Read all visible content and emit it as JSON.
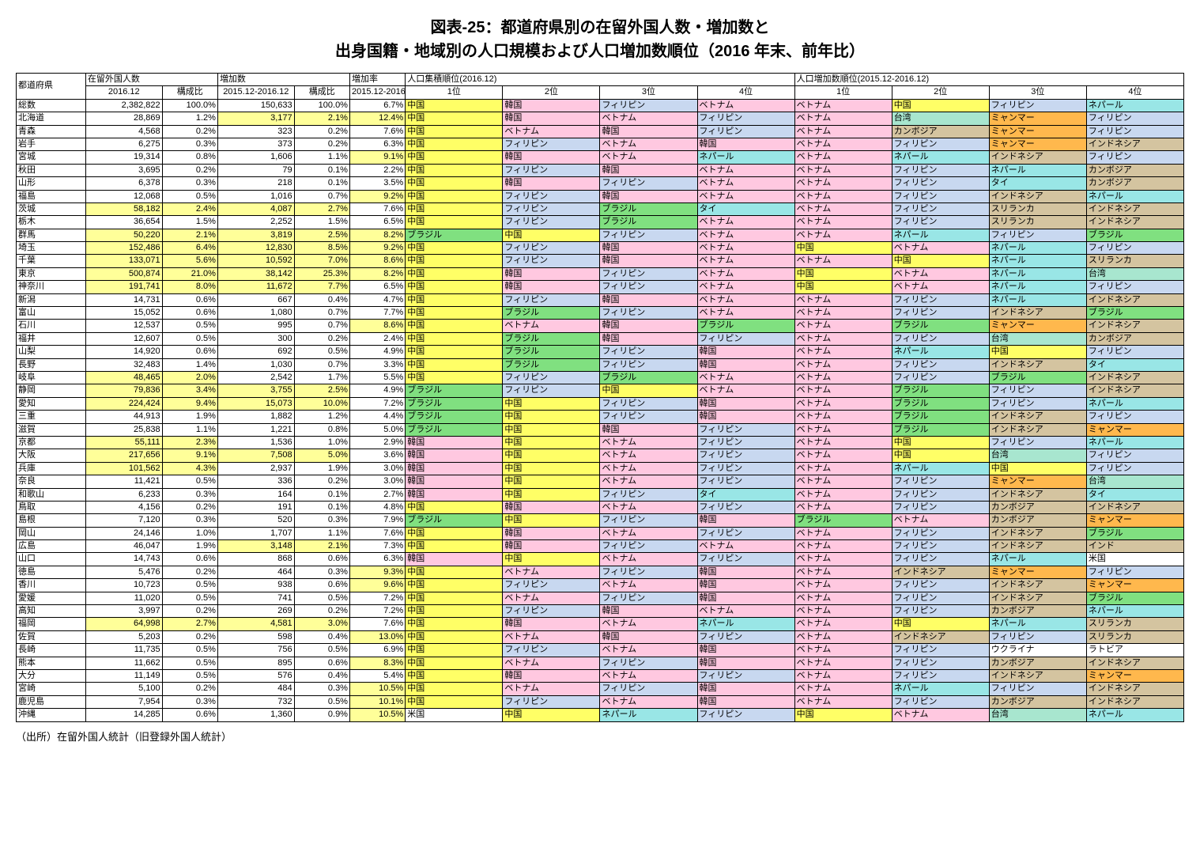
{
  "title_line1": "図表-25：都道府県別の在留外国人数・増加数と",
  "title_line2": "出身国籍・地域別の人口規模および人口増加数順位（2016 年末、前年比）",
  "source": "（出所）在留外国人統計（旧登録外国人統計）",
  "headers": {
    "pref": "都道府県",
    "residents": "在留外国人数",
    "increase": "増加数",
    "increase_rate": "増加率",
    "pop_rank": "人口集積順位(2016.12)",
    "growth_rank": "人口増加数順位(2015.12-2016.12)",
    "date": "2016.12",
    "ratio": "構成比",
    "period": "2015.12-2016.12",
    "r1": "1位",
    "r2": "2位",
    "r3": "3位",
    "r4": "4位"
  },
  "colors": {
    "中国": "#ffff66",
    "韓国": "#ffc8e0",
    "フィリピン": "#c8d8f0",
    "ベトナム": "#ffc8e0",
    "ネパール": "#99e6e6",
    "台湾": "#a8e6cf",
    "ミャンマー": "#ffb84d",
    "インドネシア": "#d4c4a0",
    "ブラジル": "#80e080",
    "タイ": "#99e6e6",
    "カンボジア": "#d4c4a0",
    "スリランカ": "#d4c4a0",
    "インド": "#d4c4a0",
    "米国": "#ffffff",
    "ウクライナ": "#ffffff",
    "ラトビア": "#ffffff",
    "hl_yellow": "#ffff99",
    "none": "#ffffff"
  },
  "rows": [
    {
      "pref": "総数",
      "total": "2,382,822",
      "total_pct": "100.0%",
      "inc": "150,633",
      "inc_pct": "100.0%",
      "rate": "6.7%",
      "hl": [],
      "p": [
        "中国",
        "韓国",
        "フィリピン",
        "ベトナム"
      ],
      "g": [
        "ベトナム",
        "中国",
        "フィリピン",
        "ネパール"
      ]
    },
    {
      "pref": "北海道",
      "total": "28,869",
      "total_pct": "1.2%",
      "inc": "3,177",
      "inc_pct": "2.1%",
      "rate": "12.4%",
      "hl": [
        "inc",
        "inc_pct",
        "rate"
      ],
      "p": [
        "中国",
        "韓国",
        "ベトナム",
        "フィリピン"
      ],
      "g": [
        "ベトナム",
        "台湾",
        "ミャンマー",
        "フィリピン"
      ]
    },
    {
      "pref": "青森",
      "total": "4,568",
      "total_pct": "0.2%",
      "inc": "323",
      "inc_pct": "0.2%",
      "rate": "7.6%",
      "hl": [],
      "p": [
        "中国",
        "ベトナム",
        "韓国",
        "フィリピン"
      ],
      "g": [
        "ベトナム",
        "カンボジア",
        "ミャンマー",
        "フィリピン"
      ]
    },
    {
      "pref": "岩手",
      "total": "6,275",
      "total_pct": "0.3%",
      "inc": "373",
      "inc_pct": "0.2%",
      "rate": "6.3%",
      "hl": [],
      "p": [
        "中国",
        "フィリピン",
        "ベトナム",
        "韓国"
      ],
      "g": [
        "ベトナム",
        "フィリピン",
        "ミャンマー",
        "インドネシア"
      ]
    },
    {
      "pref": "宮城",
      "total": "19,314",
      "total_pct": "0.8%",
      "inc": "1,606",
      "inc_pct": "1.1%",
      "rate": "9.1%",
      "hl": [
        "rate"
      ],
      "p": [
        "中国",
        "韓国",
        "ベトナム",
        "ネパール"
      ],
      "g": [
        "ベトナム",
        "ネパール",
        "インドネシア",
        "フィリピン"
      ]
    },
    {
      "pref": "秋田",
      "total": "3,695",
      "total_pct": "0.2%",
      "inc": "79",
      "inc_pct": "0.1%",
      "rate": "2.2%",
      "hl": [],
      "p": [
        "中国",
        "フィリピン",
        "韓国",
        "ベトナム"
      ],
      "g": [
        "ベトナム",
        "フィリピン",
        "ネパール",
        "カンボジア"
      ]
    },
    {
      "pref": "山形",
      "total": "6,378",
      "total_pct": "0.3%",
      "inc": "218",
      "inc_pct": "0.1%",
      "rate": "3.5%",
      "hl": [],
      "p": [
        "中国",
        "韓国",
        "フィリピン",
        "ベトナム"
      ],
      "g": [
        "ベトナム",
        "フィリピン",
        "タイ",
        "カンボジア"
      ]
    },
    {
      "pref": "福島",
      "total": "12,068",
      "total_pct": "0.5%",
      "inc": "1,016",
      "inc_pct": "0.7%",
      "rate": "9.2%",
      "hl": [
        "rate"
      ],
      "p": [
        "中国",
        "フィリピン",
        "韓国",
        "ベトナム"
      ],
      "g": [
        "ベトナム",
        "フィリピン",
        "インドネシア",
        "ネパール"
      ]
    },
    {
      "pref": "茨城",
      "total": "58,182",
      "total_pct": "2.4%",
      "inc": "4,087",
      "inc_pct": "2.7%",
      "rate": "7.6%",
      "hl": [
        "total",
        "total_pct",
        "inc",
        "inc_pct"
      ],
      "p": [
        "中国",
        "フィリピン",
        "ブラジル",
        "タイ"
      ],
      "g": [
        "ベトナム",
        "フィリピン",
        "スリランカ",
        "インドネシア"
      ]
    },
    {
      "pref": "栃木",
      "total": "36,654",
      "total_pct": "1.5%",
      "inc": "2,252",
      "inc_pct": "1.5%",
      "rate": "6.5%",
      "hl": [],
      "p": [
        "中国",
        "フィリピン",
        "ブラジル",
        "ベトナム"
      ],
      "g": [
        "ベトナム",
        "フィリピン",
        "スリランカ",
        "インドネシア"
      ]
    },
    {
      "pref": "群馬",
      "total": "50,220",
      "total_pct": "2.1%",
      "inc": "3,819",
      "inc_pct": "2.5%",
      "rate": "8.2%",
      "hl": [
        "total",
        "total_pct",
        "inc",
        "inc_pct",
        "rate"
      ],
      "p": [
        "ブラジル",
        "中国",
        "フィリピン",
        "ベトナム"
      ],
      "g": [
        "ベトナム",
        "ネパール",
        "フィリピン",
        "ブラジル"
      ]
    },
    {
      "pref": "埼玉",
      "total": "152,486",
      "total_pct": "6.4%",
      "inc": "12,830",
      "inc_pct": "8.5%",
      "rate": "9.2%",
      "hl": [
        "total",
        "total_pct",
        "inc",
        "inc_pct",
        "rate"
      ],
      "p": [
        "中国",
        "フィリピン",
        "韓国",
        "ベトナム"
      ],
      "g": [
        "中国",
        "ベトナム",
        "ネパール",
        "フィリピン"
      ]
    },
    {
      "pref": "千葉",
      "total": "133,071",
      "total_pct": "5.6%",
      "inc": "10,592",
      "inc_pct": "7.0%",
      "rate": "8.6%",
      "hl": [
        "total",
        "total_pct",
        "inc",
        "inc_pct",
        "rate"
      ],
      "p": [
        "中国",
        "フィリピン",
        "韓国",
        "ベトナム"
      ],
      "g": [
        "ベトナム",
        "中国",
        "ネパール",
        "スリランカ"
      ]
    },
    {
      "pref": "東京",
      "total": "500,874",
      "total_pct": "21.0%",
      "inc": "38,142",
      "inc_pct": "25.3%",
      "rate": "8.2%",
      "hl": [
        "total",
        "total_pct",
        "inc",
        "inc_pct",
        "rate"
      ],
      "p": [
        "中国",
        "韓国",
        "フィリピン",
        "ベトナム"
      ],
      "g": [
        "中国",
        "ベトナム",
        "ネパール",
        "台湾"
      ]
    },
    {
      "pref": "神奈川",
      "total": "191,741",
      "total_pct": "8.0%",
      "inc": "11,672",
      "inc_pct": "7.7%",
      "rate": "6.5%",
      "hl": [
        "total",
        "total_pct",
        "inc",
        "inc_pct"
      ],
      "p": [
        "中国",
        "韓国",
        "フィリピン",
        "ベトナム"
      ],
      "g": [
        "中国",
        "ベトナム",
        "ネパール",
        "フィリピン"
      ]
    },
    {
      "pref": "新潟",
      "total": "14,731",
      "total_pct": "0.6%",
      "inc": "667",
      "inc_pct": "0.4%",
      "rate": "4.7%",
      "hl": [],
      "p": [
        "中国",
        "フィリピン",
        "韓国",
        "ベトナム"
      ],
      "g": [
        "ベトナム",
        "フィリピン",
        "ネパール",
        "インドネシア"
      ]
    },
    {
      "pref": "富山",
      "total": "15,052",
      "total_pct": "0.6%",
      "inc": "1,080",
      "inc_pct": "0.7%",
      "rate": "7.7%",
      "hl": [],
      "p": [
        "中国",
        "ブラジル",
        "フィリピン",
        "ベトナム"
      ],
      "g": [
        "ベトナム",
        "フィリピン",
        "インドネシア",
        "ブラジル"
      ]
    },
    {
      "pref": "石川",
      "total": "12,537",
      "total_pct": "0.5%",
      "inc": "995",
      "inc_pct": "0.7%",
      "rate": "8.6%",
      "hl": [
        "rate"
      ],
      "p": [
        "中国",
        "ベトナム",
        "韓国",
        "ブラジル"
      ],
      "g": [
        "ベトナム",
        "ブラジル",
        "ミャンマー",
        "インドネシア"
      ]
    },
    {
      "pref": "福井",
      "total": "12,607",
      "total_pct": "0.5%",
      "inc": "300",
      "inc_pct": "0.2%",
      "rate": "2.4%",
      "hl": [],
      "p": [
        "中国",
        "ブラジル",
        "韓国",
        "フィリピン"
      ],
      "g": [
        "ベトナム",
        "フィリピン",
        "台湾",
        "カンボジア"
      ]
    },
    {
      "pref": "山梨",
      "total": "14,920",
      "total_pct": "0.6%",
      "inc": "692",
      "inc_pct": "0.5%",
      "rate": "4.9%",
      "hl": [],
      "p": [
        "中国",
        "ブラジル",
        "フィリピン",
        "韓国"
      ],
      "g": [
        "ベトナム",
        "ネパール",
        "中国",
        "フィリピン"
      ]
    },
    {
      "pref": "長野",
      "total": "32,483",
      "total_pct": "1.4%",
      "inc": "1,030",
      "inc_pct": "0.7%",
      "rate": "3.3%",
      "hl": [],
      "p": [
        "中国",
        "ブラジル",
        "フィリピン",
        "韓国"
      ],
      "g": [
        "ベトナム",
        "フィリピン",
        "インドネシア",
        "タイ"
      ]
    },
    {
      "pref": "岐阜",
      "total": "48,465",
      "total_pct": "2.0%",
      "inc": "2,542",
      "inc_pct": "1.7%",
      "rate": "5.5%",
      "hl": [
        "total",
        "total_pct"
      ],
      "p": [
        "中国",
        "フィリピン",
        "ブラジル",
        "ベトナム"
      ],
      "g": [
        "ベトナム",
        "フィリピン",
        "ブラジル",
        "インドネシア"
      ]
    },
    {
      "pref": "静岡",
      "total": "79,836",
      "total_pct": "3.4%",
      "inc": "3,755",
      "inc_pct": "2.5%",
      "rate": "4.9%",
      "hl": [
        "total",
        "total_pct",
        "inc",
        "inc_pct"
      ],
      "p": [
        "ブラジル",
        "フィリピン",
        "中国",
        "ベトナム"
      ],
      "g": [
        "ベトナム",
        "ブラジル",
        "フィリピン",
        "インドネシア"
      ]
    },
    {
      "pref": "愛知",
      "total": "224,424",
      "total_pct": "9.4%",
      "inc": "15,073",
      "inc_pct": "10.0%",
      "rate": "7.2%",
      "hl": [
        "total",
        "total_pct",
        "inc",
        "inc_pct"
      ],
      "p": [
        "ブラジル",
        "中国",
        "フィリピン",
        "韓国"
      ],
      "g": [
        "ベトナム",
        "ブラジル",
        "フィリピン",
        "ネパール"
      ]
    },
    {
      "pref": "三重",
      "total": "44,913",
      "total_pct": "1.9%",
      "inc": "1,882",
      "inc_pct": "1.2%",
      "rate": "4.4%",
      "hl": [],
      "p": [
        "ブラジル",
        "中国",
        "フィリピン",
        "韓国"
      ],
      "g": [
        "ベトナム",
        "ブラジル",
        "インドネシア",
        "フィリピン"
      ]
    },
    {
      "pref": "滋賀",
      "total": "25,838",
      "total_pct": "1.1%",
      "inc": "1,221",
      "inc_pct": "0.8%",
      "rate": "5.0%",
      "hl": [],
      "p": [
        "ブラジル",
        "中国",
        "韓国",
        "フィリピン"
      ],
      "g": [
        "ベトナム",
        "ブラジル",
        "インドネシア",
        "ミャンマー"
      ]
    },
    {
      "pref": "京都",
      "total": "55,111",
      "total_pct": "2.3%",
      "inc": "1,536",
      "inc_pct": "1.0%",
      "rate": "2.9%",
      "hl": [
        "total",
        "total_pct"
      ],
      "p": [
        "韓国",
        "中国",
        "ベトナム",
        "フィリピン"
      ],
      "g": [
        "ベトナム",
        "中国",
        "フィリピン",
        "ネパール"
      ]
    },
    {
      "pref": "大阪",
      "total": "217,656",
      "total_pct": "9.1%",
      "inc": "7,508",
      "inc_pct": "5.0%",
      "rate": "3.6%",
      "hl": [
        "total",
        "total_pct",
        "inc",
        "inc_pct"
      ],
      "p": [
        "韓国",
        "中国",
        "ベトナム",
        "フィリピン"
      ],
      "g": [
        "ベトナム",
        "中国",
        "台湾",
        "フィリピン"
      ]
    },
    {
      "pref": "兵庫",
      "total": "101,562",
      "total_pct": "4.3%",
      "inc": "2,937",
      "inc_pct": "1.9%",
      "rate": "3.0%",
      "hl": [
        "total",
        "total_pct"
      ],
      "p": [
        "韓国",
        "中国",
        "ベトナム",
        "フィリピン"
      ],
      "g": [
        "ベトナム",
        "ネパール",
        "中国",
        "フィリピン"
      ]
    },
    {
      "pref": "奈良",
      "total": "11,421",
      "total_pct": "0.5%",
      "inc": "336",
      "inc_pct": "0.2%",
      "rate": "3.0%",
      "hl": [],
      "p": [
        "韓国",
        "中国",
        "ベトナム",
        "フィリピン"
      ],
      "g": [
        "ベトナム",
        "フィリピン",
        "ミャンマー",
        "台湾"
      ]
    },
    {
      "pref": "和歌山",
      "total": "6,233",
      "total_pct": "0.3%",
      "inc": "164",
      "inc_pct": "0.1%",
      "rate": "2.7%",
      "hl": [],
      "p": [
        "韓国",
        "中国",
        "フィリピン",
        "タイ"
      ],
      "g": [
        "ベトナム",
        "フィリピン",
        "インドネシア",
        "タイ"
      ]
    },
    {
      "pref": "鳥取",
      "total": "4,156",
      "total_pct": "0.2%",
      "inc": "191",
      "inc_pct": "0.1%",
      "rate": "4.8%",
      "hl": [],
      "p": [
        "中国",
        "韓国",
        "ベトナム",
        "フィリピン"
      ],
      "g": [
        "ベトナム",
        "フィリピン",
        "カンボジア",
        "インドネシア"
      ]
    },
    {
      "pref": "島根",
      "total": "7,120",
      "total_pct": "0.3%",
      "inc": "520",
      "inc_pct": "0.3%",
      "rate": "7.9%",
      "hl": [],
      "p": [
        "ブラジル",
        "中国",
        "フィリピン",
        "韓国"
      ],
      "g": [
        "ブラジル",
        "ベトナム",
        "カンボジア",
        "ミャンマー"
      ]
    },
    {
      "pref": "岡山",
      "total": "24,146",
      "total_pct": "1.0%",
      "inc": "1,707",
      "inc_pct": "1.1%",
      "rate": "7.6%",
      "hl": [],
      "p": [
        "中国",
        "韓国",
        "ベトナム",
        "フィリピン"
      ],
      "g": [
        "ベトナム",
        "フィリピン",
        "インドネシア",
        "ブラジル"
      ]
    },
    {
      "pref": "広島",
      "total": "46,047",
      "total_pct": "1.9%",
      "inc": "3,148",
      "inc_pct": "2.1%",
      "rate": "7.3%",
      "hl": [
        "inc",
        "inc_pct"
      ],
      "p": [
        "中国",
        "韓国",
        "フィリピン",
        "ベトナム"
      ],
      "g": [
        "ベトナム",
        "フィリピン",
        "インドネシア",
        "インド"
      ]
    },
    {
      "pref": "山口",
      "total": "14,743",
      "total_pct": "0.6%",
      "inc": "868",
      "inc_pct": "0.6%",
      "rate": "6.3%",
      "hl": [],
      "p": [
        "韓国",
        "中国",
        "ベトナム",
        "フィリピン"
      ],
      "g": [
        "ベトナム",
        "フィリピン",
        "ネパール",
        "米国"
      ]
    },
    {
      "pref": "徳島",
      "total": "5,476",
      "total_pct": "0.2%",
      "inc": "464",
      "inc_pct": "0.3%",
      "rate": "9.3%",
      "hl": [
        "rate"
      ],
      "p": [
        "中国",
        "ベトナム",
        "フィリピン",
        "韓国"
      ],
      "g": [
        "ベトナム",
        "インドネシア",
        "ミャンマー",
        "フィリピン"
      ]
    },
    {
      "pref": "香川",
      "total": "10,723",
      "total_pct": "0.5%",
      "inc": "938",
      "inc_pct": "0.6%",
      "rate": "9.6%",
      "hl": [
        "rate"
      ],
      "p": [
        "中国",
        "フィリピン",
        "ベトナム",
        "韓国"
      ],
      "g": [
        "ベトナム",
        "フィリピン",
        "インドネシア",
        "ミャンマー"
      ]
    },
    {
      "pref": "愛媛",
      "total": "11,020",
      "total_pct": "0.5%",
      "inc": "741",
      "inc_pct": "0.5%",
      "rate": "7.2%",
      "hl": [],
      "p": [
        "中国",
        "ベトナム",
        "フィリピン",
        "韓国"
      ],
      "g": [
        "ベトナム",
        "フィリピン",
        "インドネシア",
        "ブラジル"
      ]
    },
    {
      "pref": "高知",
      "total": "3,997",
      "total_pct": "0.2%",
      "inc": "269",
      "inc_pct": "0.2%",
      "rate": "7.2%",
      "hl": [],
      "p": [
        "中国",
        "フィリピン",
        "韓国",
        "ベトナム"
      ],
      "g": [
        "ベトナム",
        "フィリピン",
        "カンボジア",
        "ネパール"
      ]
    },
    {
      "pref": "福岡",
      "total": "64,998",
      "total_pct": "2.7%",
      "inc": "4,581",
      "inc_pct": "3.0%",
      "rate": "7.6%",
      "hl": [
        "total",
        "total_pct",
        "inc",
        "inc_pct"
      ],
      "p": [
        "中国",
        "韓国",
        "ベトナム",
        "ネパール"
      ],
      "g": [
        "ベトナム",
        "中国",
        "ネパール",
        "スリランカ"
      ]
    },
    {
      "pref": "佐賀",
      "total": "5,203",
      "total_pct": "0.2%",
      "inc": "598",
      "inc_pct": "0.4%",
      "rate": "13.0%",
      "hl": [
        "rate"
      ],
      "p": [
        "中国",
        "ベトナム",
        "韓国",
        "フィリピン"
      ],
      "g": [
        "ベトナム",
        "インドネシア",
        "フィリピン",
        "スリランカ"
      ]
    },
    {
      "pref": "長崎",
      "total": "11,735",
      "total_pct": "0.5%",
      "inc": "756",
      "inc_pct": "0.5%",
      "rate": "6.9%",
      "hl": [],
      "p": [
        "中国",
        "フィリピン",
        "ベトナム",
        "韓国"
      ],
      "g": [
        "ベトナム",
        "フィリピン",
        "ウクライナ",
        "ラトビア"
      ]
    },
    {
      "pref": "熊本",
      "total": "11,662",
      "total_pct": "0.5%",
      "inc": "895",
      "inc_pct": "0.6%",
      "rate": "8.3%",
      "hl": [
        "rate"
      ],
      "p": [
        "中国",
        "ベトナム",
        "フィリピン",
        "韓国"
      ],
      "g": [
        "ベトナム",
        "フィリピン",
        "カンボジア",
        "インドネシア"
      ]
    },
    {
      "pref": "大分",
      "total": "11,149",
      "total_pct": "0.5%",
      "inc": "576",
      "inc_pct": "0.4%",
      "rate": "5.4%",
      "hl": [],
      "p": [
        "中国",
        "韓国",
        "ベトナム",
        "フィリピン"
      ],
      "g": [
        "ベトナム",
        "フィリピン",
        "インドネシア",
        "ミャンマー"
      ]
    },
    {
      "pref": "宮崎",
      "total": "5,100",
      "total_pct": "0.2%",
      "inc": "484",
      "inc_pct": "0.3%",
      "rate": "10.5%",
      "hl": [
        "rate"
      ],
      "p": [
        "中国",
        "ベトナム",
        "フィリピン",
        "韓国"
      ],
      "g": [
        "ベトナム",
        "ネパール",
        "フィリピン",
        "インドネシア"
      ]
    },
    {
      "pref": "鹿児島",
      "total": "7,954",
      "total_pct": "0.3%",
      "inc": "732",
      "inc_pct": "0.5%",
      "rate": "10.1%",
      "hl": [
        "rate"
      ],
      "p": [
        "中国",
        "フィリピン",
        "ベトナム",
        "韓国"
      ],
      "g": [
        "ベトナム",
        "フィリピン",
        "カンボジア",
        "インドネシア"
      ]
    },
    {
      "pref": "沖縄",
      "total": "14,285",
      "total_pct": "0.6%",
      "inc": "1,360",
      "inc_pct": "0.9%",
      "rate": "10.5%",
      "hl": [
        "rate"
      ],
      "p": [
        "米国",
        "中国",
        "ネパール",
        "フィリピン"
      ],
      "g": [
        "中国",
        "ベトナム",
        "台湾",
        "ネパール"
      ]
    }
  ]
}
